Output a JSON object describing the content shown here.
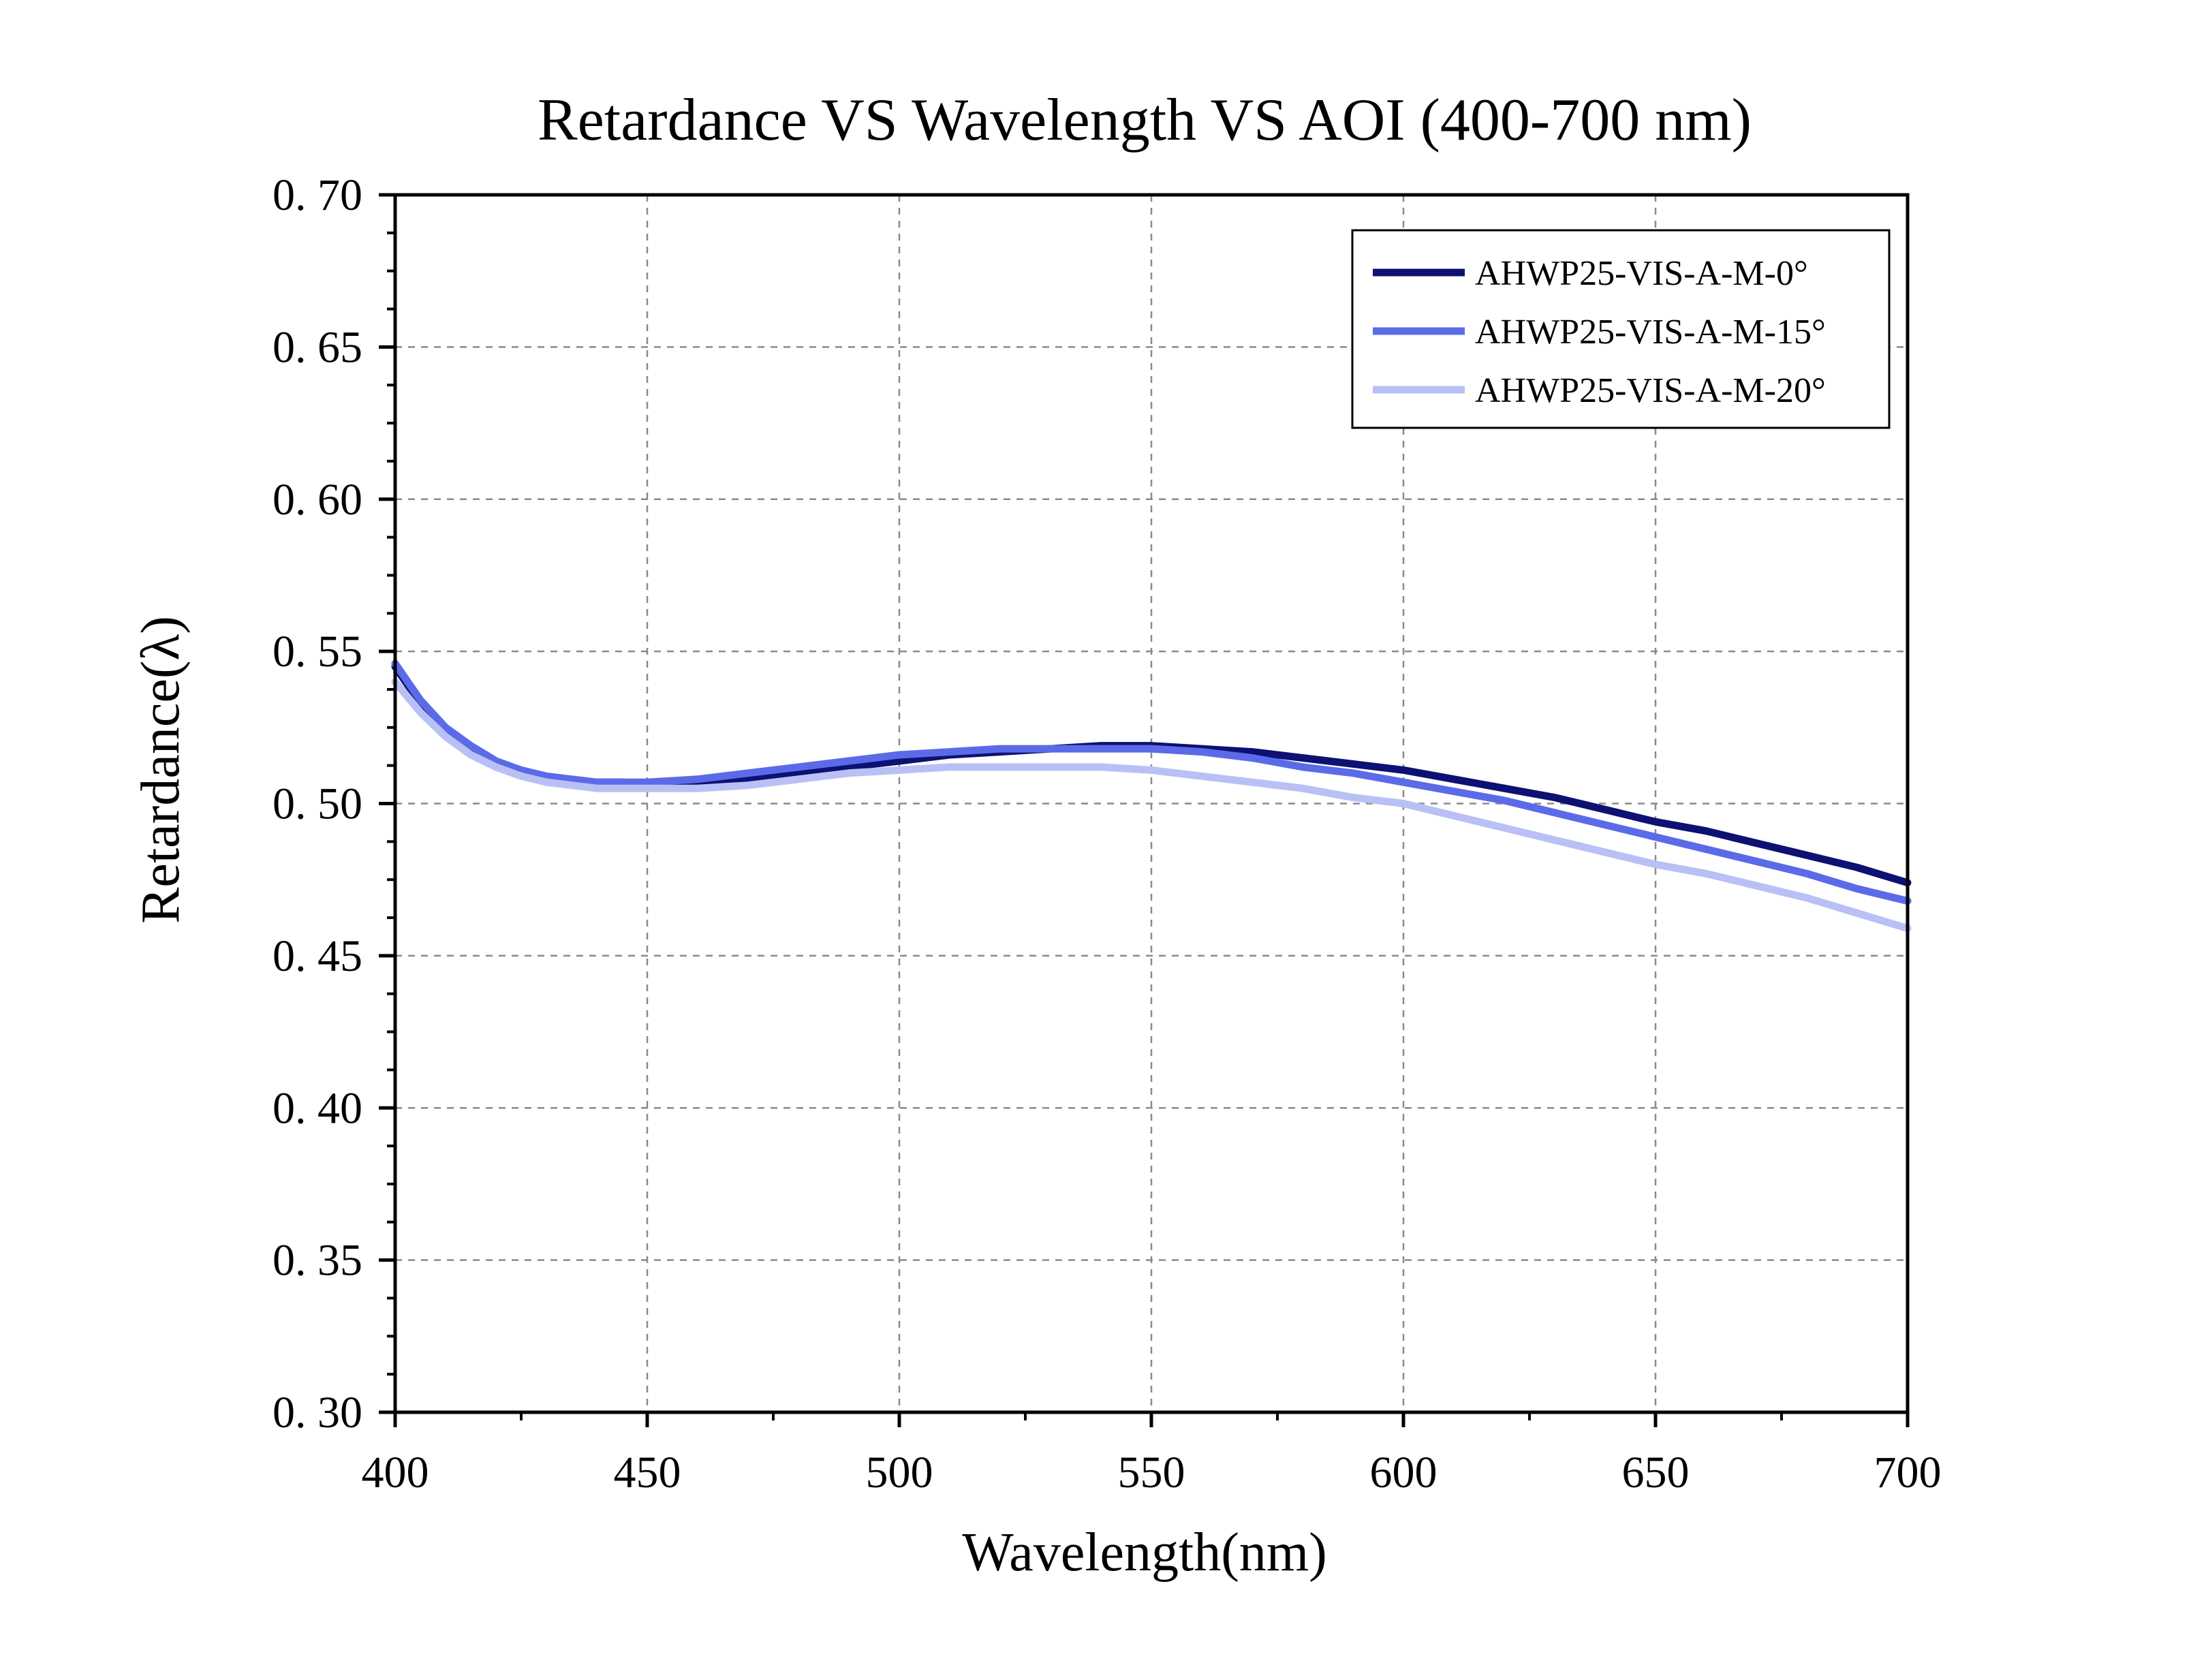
{
  "chart_data": {
    "type": "line",
    "title": "Retardance VS Wavelength VS AOI (400-700 nm)",
    "xlabel": "Wavelength(nm)",
    "ylabel": "Retardance(λ)",
    "xlim": [
      400,
      700
    ],
    "ylim": [
      0.3,
      0.7
    ],
    "x_ticks": [
      400,
      450,
      500,
      550,
      600,
      650,
      700
    ],
    "x_tick_labels": [
      "400",
      "450",
      "500",
      "550",
      "600",
      "650",
      "700"
    ],
    "y_ticks": [
      0.3,
      0.35,
      0.4,
      0.45,
      0.5,
      0.55,
      0.6,
      0.65,
      0.7
    ],
    "y_tick_labels": [
      "0. 30",
      "0. 35",
      "0. 40",
      "0. 45",
      "0. 50",
      "0. 55",
      "0. 60",
      "0. 65",
      "0. 70"
    ],
    "grid": true,
    "legend_position": "top-right",
    "series": [
      {
        "name": "AHWP25-VIS-A-M-0°",
        "color": "#0d1173",
        "x": [
          400,
          405,
          410,
          415,
          420,
          425,
          430,
          435,
          440,
          445,
          450,
          460,
          470,
          480,
          490,
          500,
          510,
          520,
          530,
          540,
          550,
          560,
          570,
          580,
          590,
          600,
          610,
          620,
          630,
          640,
          650,
          660,
          670,
          680,
          690,
          700
        ],
        "y": [
          0.545,
          0.533,
          0.524,
          0.517,
          0.512,
          0.51,
          0.508,
          0.507,
          0.507,
          0.507,
          0.506,
          0.507,
          0.508,
          0.51,
          0.512,
          0.514,
          0.516,
          0.517,
          0.518,
          0.519,
          0.519,
          0.518,
          0.517,
          0.515,
          0.513,
          0.511,
          0.508,
          0.505,
          0.502,
          0.498,
          0.494,
          0.491,
          0.487,
          0.483,
          0.479,
          0.474
        ]
      },
      {
        "name": "AHWP25-VIS-A-M-15°",
        "color": "#5b6be8",
        "x": [
          400,
          405,
          410,
          415,
          420,
          425,
          430,
          435,
          440,
          445,
          450,
          460,
          470,
          480,
          490,
          500,
          510,
          520,
          530,
          540,
          550,
          560,
          570,
          580,
          590,
          600,
          610,
          620,
          630,
          640,
          650,
          660,
          670,
          680,
          690,
          700
        ],
        "y": [
          0.546,
          0.534,
          0.525,
          0.519,
          0.514,
          0.511,
          0.509,
          0.508,
          0.507,
          0.507,
          0.507,
          0.508,
          0.51,
          0.512,
          0.514,
          0.516,
          0.517,
          0.518,
          0.518,
          0.518,
          0.518,
          0.517,
          0.515,
          0.512,
          0.51,
          0.507,
          0.504,
          0.501,
          0.497,
          0.493,
          0.489,
          0.485,
          0.481,
          0.477,
          0.472,
          0.468
        ]
      },
      {
        "name": "AHWP25-VIS-A-M-20°",
        "color": "#b9c0f5",
        "x": [
          400,
          405,
          410,
          415,
          420,
          425,
          430,
          435,
          440,
          445,
          450,
          460,
          470,
          480,
          490,
          500,
          510,
          520,
          530,
          540,
          550,
          560,
          570,
          580,
          590,
          600,
          610,
          620,
          630,
          640,
          650,
          660,
          670,
          680,
          690,
          700
        ],
        "y": [
          0.54,
          0.53,
          0.522,
          0.516,
          0.512,
          0.509,
          0.507,
          0.506,
          0.505,
          0.505,
          0.505,
          0.505,
          0.506,
          0.508,
          0.51,
          0.511,
          0.512,
          0.512,
          0.512,
          0.512,
          0.511,
          0.509,
          0.507,
          0.505,
          0.502,
          0.5,
          0.496,
          0.492,
          0.488,
          0.484,
          0.48,
          0.477,
          0.473,
          0.469,
          0.464,
          0.459
        ]
      }
    ]
  }
}
